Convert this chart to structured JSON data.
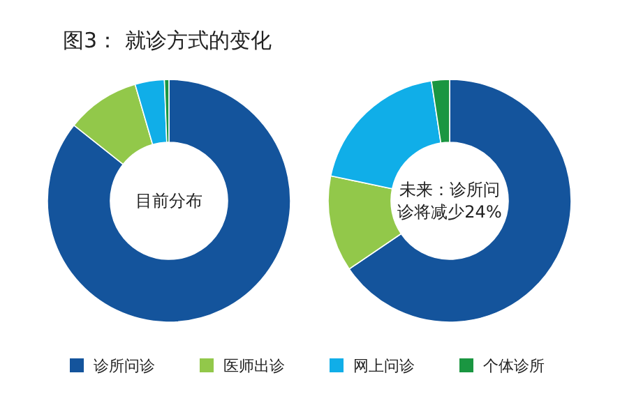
{
  "chart_data": {
    "type": "donut",
    "title": "图3： 就诊方式的变化",
    "categories": [
      "诊所问诊",
      "医师出诊",
      "网上问诊",
      "个体诊所"
    ],
    "colors": [
      "#14549c",
      "#92c84a",
      "#10aee8",
      "#1a9641"
    ],
    "series": [
      {
        "values": [
          85.7,
          9.8,
          3.9,
          0.6
        ]
      },
      {
        "values": [
          65.5,
          12.8,
          19.3,
          2.4
        ]
      }
    ],
    "annotations": [
      "目前分布",
      "未来：诊所问诊将减少24%"
    ],
    "legend": "bottom"
  }
}
